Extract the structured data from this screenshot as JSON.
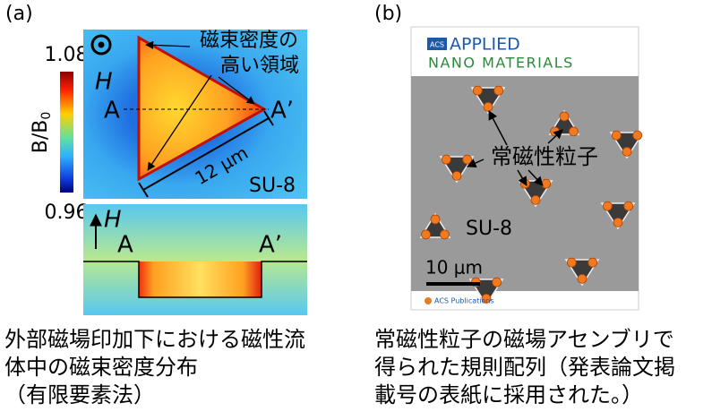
{
  "panel_a": {
    "label": "(a)",
    "colorbar": {
      "max": "1.08",
      "min": "0.96",
      "title": "B/B",
      "title_sub": "0"
    },
    "top_view": {
      "field": "H",
      "point_a": "A",
      "point_a2": "A’",
      "callout": [
        "磁束密度の",
        "高い領域"
      ],
      "scale": "12 μm",
      "material": "SU-8"
    },
    "side_view": {
      "field": "H",
      "point_a": "A",
      "point_a2": "A’"
    },
    "caption": [
      "外部磁場印加下における磁性流",
      "体中の磁束密度分布",
      "（有限要素法）"
    ]
  },
  "panel_b": {
    "label": "(b)",
    "cover": {
      "publisher_badge": "ACS",
      "title_line1": "APPLIED",
      "title_line2": "NANO MATERIALS",
      "annotation": "常磁性粒子",
      "material": "SU-8",
      "scale": "10 μm",
      "footer": "ACS Publications"
    },
    "caption": [
      "常磁性粒子の磁場アセンブリで",
      "得られた規則配列（発表論文掲",
      "載号の表紙に採用された。）"
    ]
  }
}
